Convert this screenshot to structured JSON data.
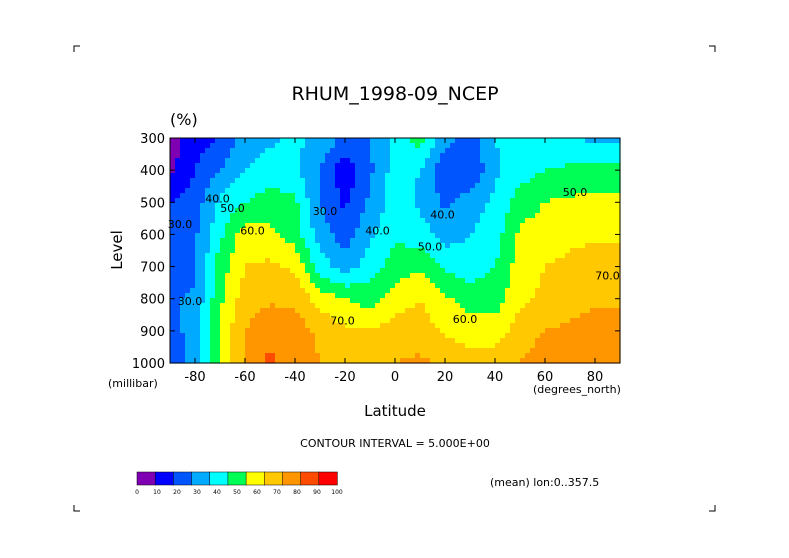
{
  "chart_data": {
    "type": "heatmap",
    "title": "RHUM_1998-09_NCEP",
    "units": "(%)",
    "xlabel": "Latitude",
    "ylabel": "Level",
    "x_unit": "(degrees_north)",
    "y_unit": "(millibar)",
    "contour_interval": "CONTOUR INTERVAL = 5.000E+00",
    "note": "(mean) lon:0..357.5",
    "xlim": [
      -90,
      90
    ],
    "ylim": [
      1000,
      300
    ],
    "x_ticks": [
      "-80",
      "-60",
      "-40",
      "-20",
      "0",
      "20",
      "40",
      "60",
      "80"
    ],
    "x_tick_values": [
      -80,
      -60,
      -40,
      -20,
      0,
      20,
      40,
      60,
      80
    ],
    "y_ticks": [
      "300",
      "400",
      "500",
      "600",
      "700",
      "800",
      "900",
      "1000"
    ],
    "y_tick_values": [
      300,
      400,
      500,
      600,
      700,
      800,
      900,
      1000
    ],
    "colorbar": {
      "levels": [
        "0",
        "10",
        "20",
        "30",
        "40",
        "50",
        "60",
        "70",
        "80",
        "90",
        "100"
      ],
      "colors": [
        "#7f00b2",
        "#0000ff",
        "#0055ff",
        "#00aaff",
        "#00ffff",
        "#00ff55",
        "#ffff00",
        "#ffc800",
        "#ff9600",
        "#ff4b00",
        "#ff0000"
      ]
    },
    "x": [
      -90,
      -80,
      -70,
      -60,
      -50,
      -40,
      -30,
      -20,
      -10,
      0,
      10,
      20,
      30,
      40,
      50,
      60,
      70,
      80,
      90
    ],
    "y": [
      300,
      400,
      500,
      600,
      700,
      800,
      900,
      1000
    ],
    "z": [
      [
        5,
        15,
        20,
        35,
        38,
        42,
        38,
        28,
        30,
        42,
        55,
        35,
        25,
        40,
        45,
        42,
        40,
        38,
        38
      ],
      [
        8,
        20,
        30,
        40,
        45,
        42,
        30,
        12,
        28,
        45,
        40,
        22,
        20,
        38,
        45,
        50,
        52,
        55,
        55
      ],
      [
        20,
        25,
        42,
        50,
        55,
        52,
        30,
        18,
        32,
        45,
        38,
        28,
        35,
        42,
        55,
        60,
        62,
        62,
        62
      ],
      [
        25,
        28,
        48,
        65,
        62,
        55,
        35,
        25,
        38,
        48,
        45,
        35,
        40,
        45,
        62,
        65,
        68,
        68,
        68
      ],
      [
        22,
        28,
        55,
        70,
        72,
        68,
        45,
        35,
        45,
        55,
        58,
        48,
        45,
        50,
        65,
        70,
        72,
        75,
        75
      ],
      [
        28,
        32,
        58,
        75,
        78,
        78,
        65,
        60,
        55,
        65,
        70,
        62,
        55,
        55,
        68,
        72,
        75,
        78,
        80
      ],
      [
        25,
        35,
        62,
        80,
        88,
        85,
        78,
        72,
        70,
        75,
        75,
        68,
        65,
        65,
        75,
        80,
        82,
        85,
        80
      ],
      [
        22,
        35,
        62,
        82,
        92,
        85,
        80,
        78,
        78,
        80,
        82,
        78,
        75,
        75,
        80,
        85,
        88,
        88,
        85
      ]
    ],
    "contour_labels": [
      {
        "text": "40.0",
        "x": -71,
        "y": 500
      },
      {
        "text": "50.0",
        "x": -65,
        "y": 530
      },
      {
        "text": "60.0",
        "x": -57,
        "y": 600
      },
      {
        "text": "30.0",
        "x": -86,
        "y": 580
      },
      {
        "text": "30.0",
        "x": -82,
        "y": 820
      },
      {
        "text": "30.0",
        "x": -28,
        "y": 540
      },
      {
        "text": "40.0",
        "x": -7,
        "y": 600
      },
      {
        "text": "70.0",
        "x": -21,
        "y": 880
      },
      {
        "text": "40.0",
        "x": 19,
        "y": 550
      },
      {
        "text": "50.0",
        "x": 14,
        "y": 650
      },
      {
        "text": "60.0",
        "x": 28,
        "y": 875
      },
      {
        "text": "50.0",
        "x": 72,
        "y": 480
      },
      {
        "text": "70.0",
        "x": 85,
        "y": 740
      }
    ]
  }
}
